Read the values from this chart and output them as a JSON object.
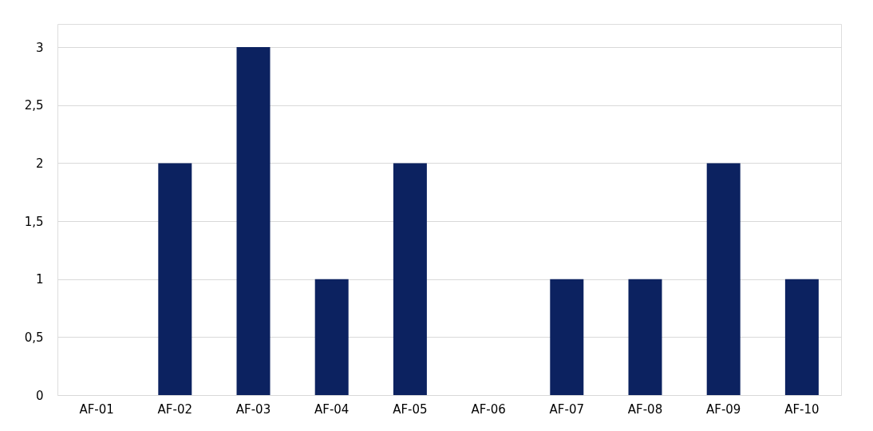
{
  "chart_data": {
    "type": "bar",
    "categories": [
      "AF-01",
      "AF-02",
      "AF-03",
      "AF-04",
      "AF-05",
      "AF-06",
      "AF-07",
      "AF-08",
      "AF-09",
      "AF-10"
    ],
    "values": [
      0,
      2,
      3,
      1,
      2,
      0,
      1,
      1,
      2,
      1
    ],
    "color": "#0c2260",
    "ylim": [
      0,
      3.2
    ],
    "yticks": [
      0,
      {
        "value": 0.5,
        "label": "0,5"
      },
      1,
      {
        "value": 1.5,
        "label": "1,5"
      },
      2,
      {
        "value": 2.5,
        "label": "2,5"
      },
      3
    ],
    "grid": "y"
  }
}
